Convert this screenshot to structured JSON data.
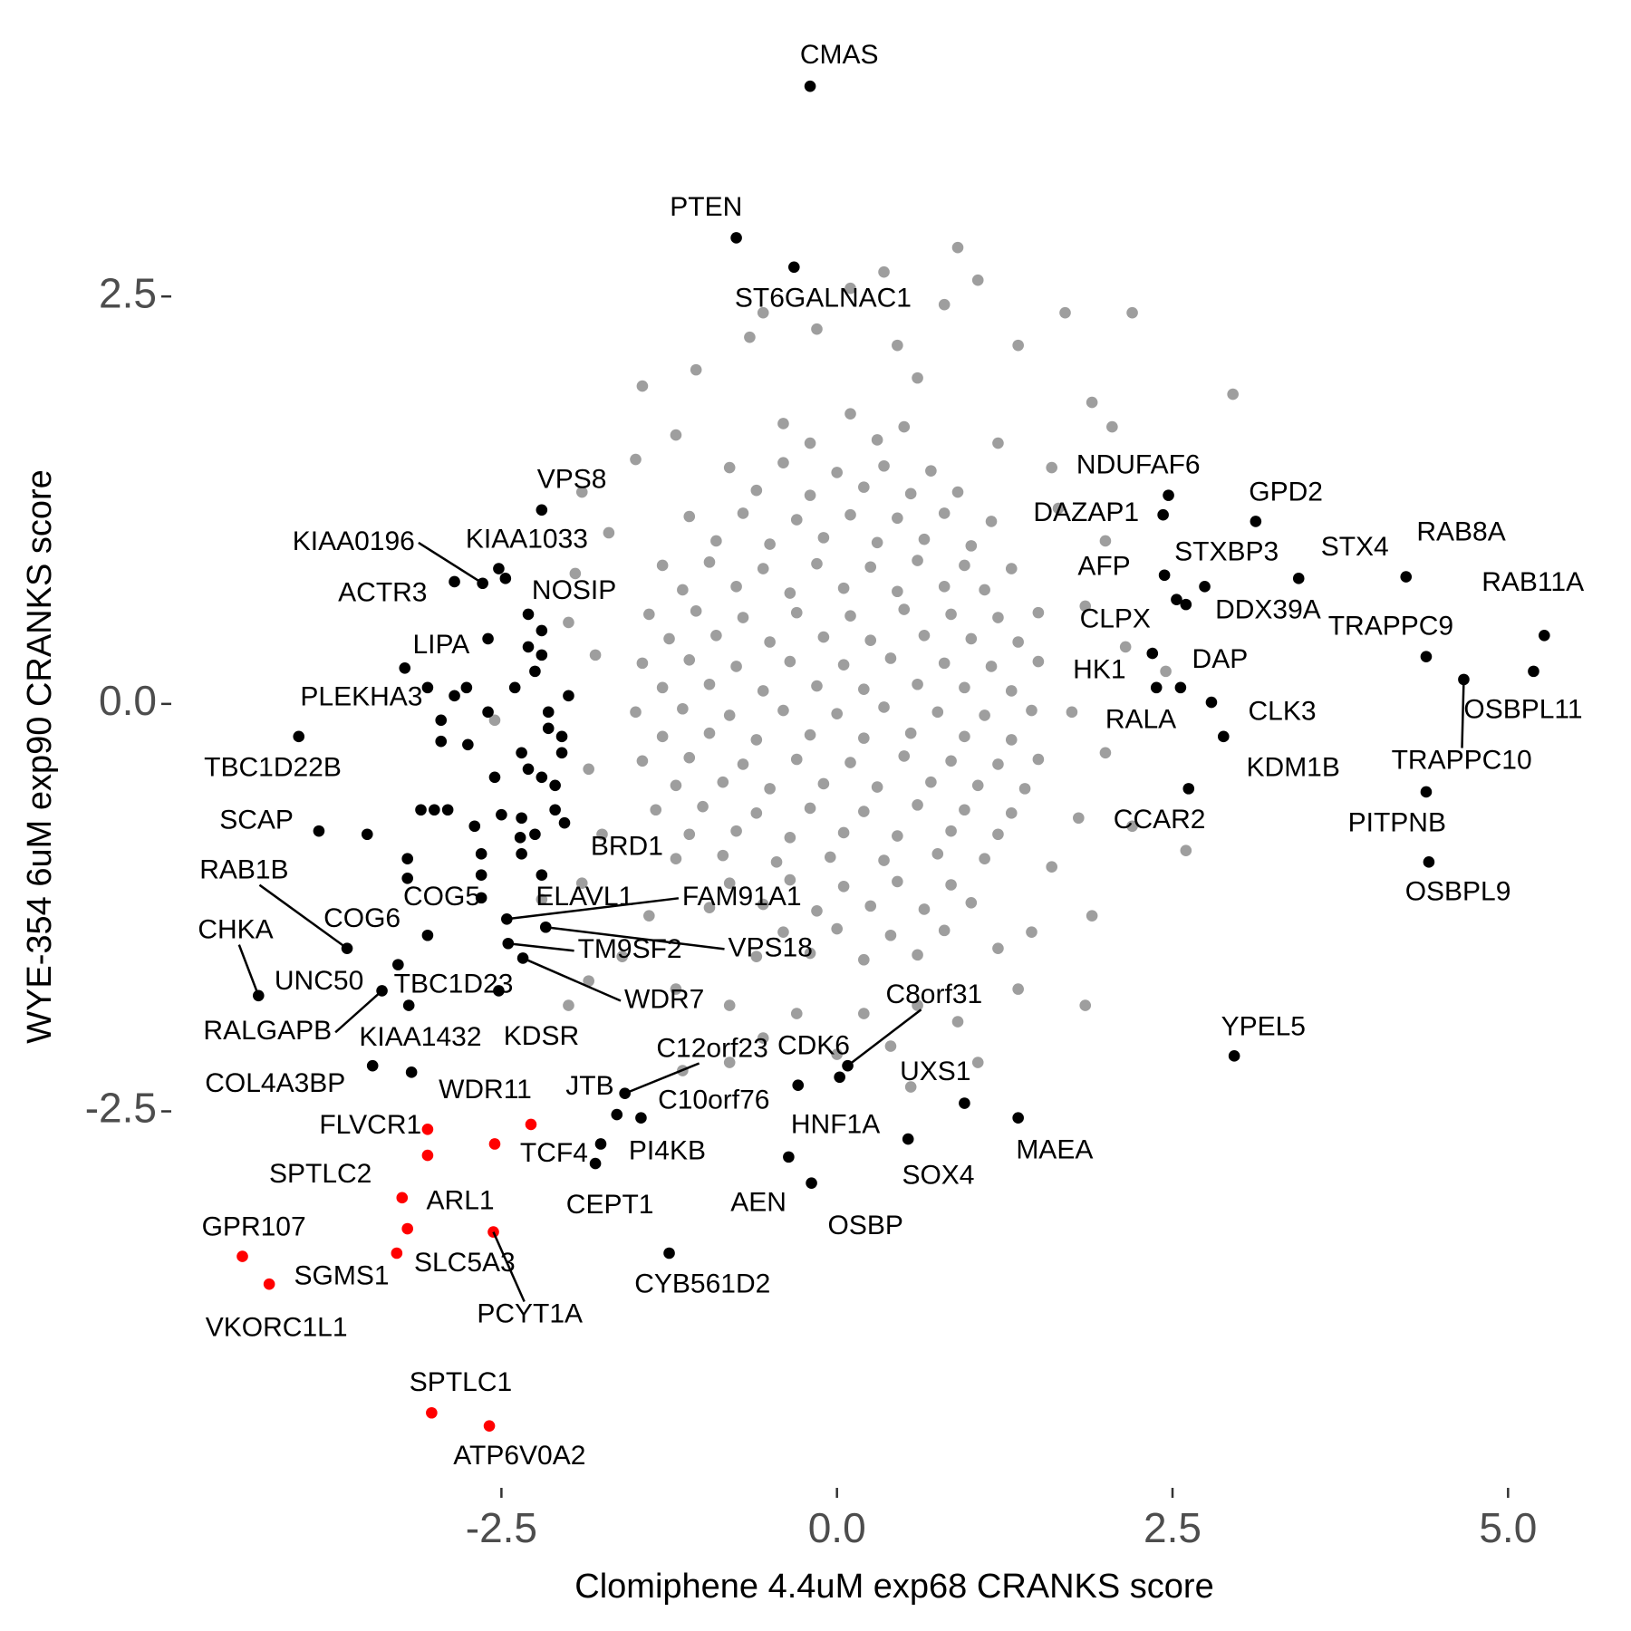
{
  "chart_data": {
    "type": "scatter",
    "xlabel": "Clomiphene 4.4uM exp68 CRANKS score",
    "ylabel": "WYE-354 6uM exp90 CRANKS score",
    "xlim": [
      -4.96,
      5.7
    ],
    "ylim": [
      -4.81,
      4.13
    ],
    "xticks": [
      -2.5,
      {
        "value": 0,
        "label": "0.0"
      },
      2.5,
      {
        "value": 5,
        "label": "5.0"
      }
    ],
    "yticks": [
      -2.5,
      {
        "value": 0,
        "label": "0.0"
      },
      2.5
    ],
    "series": [
      {
        "color": "#9e9e9e",
        "x": [
          -0.4,
          0.1,
          0.5,
          -0.2,
          0.3,
          -0.8,
          -0.4,
          0.0,
          0.35,
          0.7,
          -0.6,
          -0.2,
          0.2,
          0.55,
          0.9,
          -1.1,
          -0.7,
          -0.3,
          0.1,
          0.45,
          0.8,
          1.15,
          -0.9,
          -0.5,
          -0.1,
          0.3,
          0.65,
          1.0,
          -1.3,
          -0.95,
          -0.55,
          -0.15,
          0.25,
          0.6,
          0.95,
          1.3,
          -1.15,
          -0.75,
          -0.35,
          0.05,
          0.45,
          0.8,
          1.1,
          -1.4,
          -1.05,
          -0.7,
          -0.3,
          0.1,
          0.5,
          0.85,
          1.2,
          1.5,
          -1.25,
          -0.9,
          -0.5,
          -0.1,
          0.25,
          0.65,
          1.0,
          1.35,
          -1.45,
          -1.1,
          -0.75,
          -0.35,
          0.05,
          0.4,
          0.8,
          1.15,
          1.5,
          -1.3,
          -0.95,
          -0.55,
          -0.15,
          0.2,
          0.6,
          0.95,
          1.3,
          -1.5,
          -1.15,
          -0.8,
          -0.4,
          0.0,
          0.35,
          0.75,
          1.1,
          1.45,
          -1.3,
          -0.95,
          -0.6,
          -0.2,
          0.2,
          0.55,
          0.95,
          1.3,
          -1.45,
          -1.1,
          -0.7,
          -0.3,
          0.1,
          0.5,
          0.85,
          1.2,
          1.5,
          -1.2,
          -0.85,
          -0.5,
          -0.1,
          0.3,
          0.7,
          1.05,
          1.4,
          -1.35,
          -1.0,
          -0.6,
          -0.2,
          0.2,
          0.6,
          0.95,
          1.3,
          -1.1,
          -0.75,
          -0.35,
          0.05,
          0.45,
          0.85,
          1.2,
          -1.2,
          -0.85,
          -0.45,
          -0.05,
          0.35,
          0.75,
          1.1,
          -0.8,
          -0.35,
          0.05,
          0.45,
          0.85,
          -0.95,
          -0.55,
          -0.15,
          0.25,
          0.65,
          1.0,
          -0.4,
          0.0,
          0.4,
          0.8,
          -0.6,
          -0.2,
          0.2,
          0.6,
          0.9,
          0.35,
          0.8,
          1.05,
          -0.55,
          -0.65,
          0.45,
          1.7,
          2.2,
          0.1,
          -0.15,
          1.35,
          -1.05,
          -1.45,
          2.95,
          0.6,
          1.9,
          2.05,
          1.6,
          -1.9,
          -1.5,
          -1.2,
          1.2,
          1.65,
          2.0,
          -1.7,
          -1.95,
          -2.0,
          1.85,
          2.15,
          1.75,
          2.0,
          1.8,
          2.2,
          -1.8,
          -1.85,
          -1.75,
          -1.9,
          -2.2,
          1.6,
          1.9,
          1.45,
          1.2,
          1.85,
          -1.4,
          -1.6,
          -1.85,
          -2.0,
          -1.2,
          -0.8,
          -0.3,
          0.2,
          0.6,
          0.9,
          -0.55,
          0.0,
          0.4,
          1.05,
          -1.15,
          0.55,
          -0.8,
          1.35,
          2.6,
          2.45,
          -2.55
        ],
        "y": [
          1.72,
          1.78,
          1.7,
          1.6,
          1.62,
          1.45,
          1.48,
          1.42,
          1.46,
          1.43,
          1.31,
          1.28,
          1.33,
          1.29,
          1.3,
          1.15,
          1.17,
          1.13,
          1.16,
          1.14,
          1.17,
          1.12,
          1.0,
          0.98,
          1.02,
          0.99,
          1.01,
          0.97,
          0.85,
          0.87,
          0.83,
          0.86,
          0.84,
          0.88,
          0.85,
          0.83,
          0.7,
          0.72,
          0.68,
          0.71,
          0.69,
          0.72,
          0.7,
          0.55,
          0.57,
          0.53,
          0.56,
          0.54,
          0.58,
          0.55,
          0.53,
          0.56,
          0.4,
          0.42,
          0.38,
          0.41,
          0.39,
          0.42,
          0.4,
          0.38,
          0.25,
          0.27,
          0.23,
          0.26,
          0.24,
          0.28,
          0.25,
          0.23,
          0.26,
          0.1,
          0.12,
          0.08,
          0.11,
          0.09,
          0.12,
          0.1,
          0.08,
          -0.05,
          -0.03,
          -0.07,
          -0.04,
          -0.06,
          -0.02,
          -0.05,
          -0.07,
          -0.04,
          -0.2,
          -0.18,
          -0.22,
          -0.19,
          -0.21,
          -0.18,
          -0.2,
          -0.22,
          -0.35,
          -0.33,
          -0.37,
          -0.34,
          -0.36,
          -0.32,
          -0.35,
          -0.37,
          -0.34,
          -0.5,
          -0.48,
          -0.52,
          -0.49,
          -0.51,
          -0.48,
          -0.5,
          -0.52,
          -0.65,
          -0.63,
          -0.67,
          -0.64,
          -0.66,
          -0.62,
          -0.65,
          -0.67,
          -0.8,
          -0.78,
          -0.82,
          -0.79,
          -0.81,
          -0.78,
          -0.8,
          -0.95,
          -0.93,
          -0.97,
          -0.94,
          -0.96,
          -0.92,
          -0.95,
          -1.1,
          -1.08,
          -1.12,
          -1.09,
          -1.11,
          -1.25,
          -1.23,
          -1.27,
          -1.24,
          -1.26,
          -1.22,
          -1.4,
          -1.38,
          -1.42,
          -1.39,
          -1.55,
          -1.53,
          -1.57,
          -1.54,
          2.8,
          2.65,
          2.45,
          2.6,
          2.4,
          2.25,
          2.2,
          2.4,
          2.4,
          2.55,
          2.3,
          2.2,
          2.05,
          1.95,
          1.9,
          2.0,
          1.85,
          1.7,
          1.45,
          1.3,
          1.5,
          1.65,
          1.6,
          1.2,
          1.0,
          1.05,
          0.8,
          0.5,
          0.6,
          0.35,
          -0.05,
          -0.3,
          -0.7,
          -0.75,
          0.3,
          -0.4,
          -0.8,
          -1.1,
          -1.2,
          -1.0,
          -1.3,
          -1.4,
          -1.5,
          -1.85,
          -1.3,
          -1.55,
          -1.7,
          -1.85,
          -1.75,
          -1.85,
          -1.9,
          -1.9,
          -1.85,
          -1.95,
          -2.05,
          -2.15,
          -2.1,
          -2.2,
          -2.25,
          -2.35,
          -2.2,
          -1.75,
          -0.9,
          0.2,
          -0.1
        ]
      },
      {
        "color": "#000000",
        "x": [
          -0.2,
          -0.75,
          -0.32,
          -2.2,
          -2.64,
          -2.52,
          -2.85,
          -2.47,
          -3.22,
          -2.76,
          -4.01,
          -3.86,
          -3.65,
          -3.05,
          -4.31,
          -3.27,
          -3.39,
          -3.19,
          -3.46,
          -2.52,
          -3.17,
          -2.65,
          -2.36,
          -2.03,
          -2.46,
          -2.17,
          -2.45,
          -2.34,
          0.02,
          0.08,
          -1.58,
          -1.64,
          -1.46,
          -1.76,
          -1.8,
          -1.25,
          -0.29,
          -0.36,
          -0.19,
          0.95,
          0.53,
          1.35,
          2.96,
          2.62,
          2.88,
          2.79,
          2.38,
          2.56,
          2.35,
          2.6,
          2.53,
          2.44,
          2.74,
          2.43,
          2.47,
          3.12,
          3.44,
          4.24,
          5.27,
          4.39,
          5.19,
          4.67,
          4.39,
          4.41,
          -2.2,
          -2.3,
          -2.25,
          -2.0,
          -2.15,
          -2.4,
          -2.85,
          -2.95,
          -2.6,
          -2.75,
          -2.95,
          -2.15,
          -2.05,
          -2.35,
          -2.3,
          -2.2,
          -2.55,
          -3.0,
          -3.1,
          -2.9,
          -2.5,
          -2.35,
          -2.1,
          -2.25,
          -2.35,
          -2.65,
          -2.7,
          -3.2,
          -3.2,
          -2.65,
          -2.2,
          -3.5,
          -2.1,
          -2.6,
          -2.3,
          -2.2,
          -2.05,
          -3.05
        ],
        "y": [
          3.79,
          2.86,
          2.68,
          1.19,
          0.74,
          0.83,
          0.75,
          0.77,
          0.22,
          0.1,
          -0.2,
          -0.78,
          -1.5,
          -1.42,
          -1.79,
          -1.6,
          -1.76,
          -1.85,
          -2.22,
          -1.76,
          -2.26,
          -1.19,
          -0.82,
          -0.73,
          -1.32,
          -1.37,
          -1.47,
          -1.56,
          -2.29,
          -2.22,
          -2.39,
          -2.52,
          -2.54,
          -2.7,
          -2.82,
          -3.37,
          -2.34,
          -2.78,
          -2.94,
          -2.45,
          -2.67,
          -2.54,
          -2.16,
          -0.52,
          -0.2,
          0.01,
          0.1,
          0.1,
          0.31,
          0.61,
          0.64,
          0.79,
          0.72,
          1.16,
          1.28,
          1.12,
          0.77,
          0.78,
          0.42,
          0.29,
          0.2,
          0.15,
          -0.54,
          -0.97,
          0.45,
          0.35,
          0.2,
          0.05,
          -0.05,
          0.1,
          0.05,
          -0.1,
          -0.05,
          -0.25,
          -0.23,
          -0.15,
          -0.3,
          -0.3,
          -0.4,
          -0.45,
          -0.45,
          -0.65,
          -0.65,
          -0.65,
          -0.68,
          -0.7,
          -0.65,
          -0.8,
          -0.92,
          -0.92,
          -0.75,
          -0.95,
          -1.07,
          -1.05,
          -1.05,
          -0.8,
          -0.5,
          0.4,
          0.55,
          0.3,
          -0.2,
          0.1
        ],
        "labels": [
          "CMAS",
          "PTEN",
          "ST6GALNAC1",
          "VPS8",
          "KIAA0196",
          "KIAA1033",
          "ACTR3",
          "NOSIP",
          "LIPA",
          "PLEKHA3",
          "TBC1D22B",
          "SCAP",
          "RAB1B",
          "COG6",
          "CHKA",
          "UNC50",
          "RALGAPB",
          "TBC1D23",
          "KIAA1432",
          "KDSR",
          "COL4A3BP",
          "COG5",
          "ELAVL1",
          "BRD1",
          "FAM91A1",
          "VPS18",
          "TM9SF2",
          "WDR7",
          "CDK6",
          "C8orf31",
          "C12orf23",
          "JTB",
          "C10orf76",
          "PI4KB",
          "CEPT1",
          "CYB561D2",
          "HNF1A",
          "AEN",
          "OSBP",
          "UXS1",
          "SOX4",
          "MAEA",
          "YPEL5",
          "CCAR2",
          "KDM1B",
          "CLK3",
          "RALA",
          "HK1",
          "DAP",
          "CLPX",
          "DDX39A",
          "AFP",
          "STXBP3",
          "DAZAP1",
          "NDUFAF6",
          "GPD2",
          "STX4",
          "RAB8A",
          "RAB11A",
          "TRAPPC9",
          "OSBPL11",
          "TRAPPC10",
          "PITPNB",
          "OSBPL9",
          null,
          null,
          null,
          null,
          null,
          null,
          null,
          null,
          null,
          null,
          null,
          null,
          null,
          null,
          null,
          null,
          null,
          null,
          null,
          null,
          null,
          null,
          null,
          null,
          null,
          null,
          null,
          null,
          null,
          null,
          null,
          null,
          null,
          null,
          null,
          null,
          null,
          null
        ]
      },
      {
        "color": "#ff0000",
        "x": [
          -3.05,
          -3.05,
          -2.28,
          -2.55,
          -3.24,
          -3.2,
          -3.28,
          -2.56,
          -4.43,
          -4.23,
          -3.02,
          -2.59
        ],
        "y": [
          -2.61,
          -2.77,
          -2.58,
          -2.7,
          -3.03,
          -3.22,
          -3.37,
          -3.24,
          -3.39,
          -3.56,
          -4.35,
          -4.43
        ],
        "labels": [
          "FLVCR1",
          "SPTLC2",
          "WDR11",
          "TCF4",
          "ARL1",
          "SLC5A3",
          "SGMS1",
          "PCYT1A",
          "GPR107",
          "VKORC1L1",
          "SPTLC1",
          "ATP6V0A2"
        ]
      }
    ]
  }
}
